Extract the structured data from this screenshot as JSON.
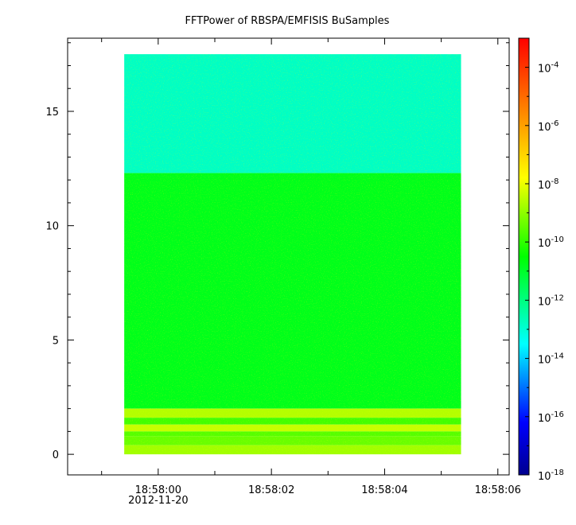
{
  "chart_data": {
    "type": "heatmap",
    "title": "FFTPower of RBSPA/EMFISIS  BuSamples",
    "xlabel": "",
    "ylabel": "",
    "x_ticks": [
      "18:58:00",
      "18:58:02",
      "18:58:04",
      "18:58:06"
    ],
    "x_sublabel": "2012-11-20",
    "x_range_seconds": [
      -1.6,
      6.2
    ],
    "data_x_range_seconds": [
      -0.6,
      5.35
    ],
    "y_ticks": [
      "0",
      "5",
      "10",
      "15"
    ],
    "ylim": [
      -0.9,
      18.2
    ],
    "data_y_range": [
      0,
      17.5
    ],
    "colorbar": {
      "scale": "log",
      "range": [
        1e-18,
        0.001
      ],
      "ticks": [
        {
          "base": "10",
          "exp": "-4"
        },
        {
          "base": "10",
          "exp": "-6"
        },
        {
          "base": "10",
          "exp": "-8"
        },
        {
          "base": "10",
          "exp": "-10"
        },
        {
          "base": "10",
          "exp": "-12"
        },
        {
          "base": "10",
          "exp": "-14"
        },
        {
          "base": "10",
          "exp": "-16"
        },
        {
          "base": "10",
          "exp": "-18"
        }
      ],
      "tick_log_values": [
        -4,
        -6,
        -8,
        -10,
        -12,
        -14,
        -16,
        -18
      ],
      "colormap": [
        "#00008f",
        "#0000ff",
        "#00ffff",
        "#00ff00",
        "#ffff00",
        "#ff8000",
        "#ff0000"
      ]
    },
    "bands": [
      {
        "y_range": [
          12.3,
          17.5
        ],
        "log_power": -12.8
      },
      {
        "y_range": [
          2.0,
          12.3
        ],
        "log_power": -10.8
      },
      {
        "y_range": [
          1.6,
          2.0
        ],
        "log_power": -8.6
      },
      {
        "y_range": [
          1.3,
          1.6
        ],
        "log_power": -9.8
      },
      {
        "y_range": [
          1.0,
          1.3
        ],
        "log_power": -8.4
      },
      {
        "y_range": [
          0.8,
          1.0
        ],
        "log_power": -9.6
      },
      {
        "y_range": [
          0.4,
          0.8
        ],
        "log_power": -9.4
      },
      {
        "y_range": [
          0.0,
          0.4
        ],
        "log_power": -8.8
      }
    ]
  }
}
